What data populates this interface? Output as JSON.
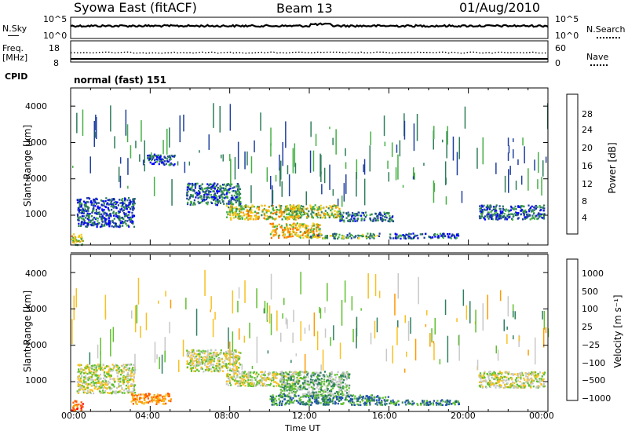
{
  "header": {
    "title": "Syowa East (fitACF)",
    "beam": "Beam 13",
    "date": "01/Aug/2010"
  },
  "status": {
    "nsky_label": "N.Sky",
    "nsky_ticks": [
      "10^5",
      "10^0"
    ],
    "nsearch_label": "N.Search",
    "nsearch_ticks": [
      "10^5",
      "10^0"
    ],
    "freq_label": "Freq.",
    "freq_unit": "[MHz]",
    "freq_ticks": [
      "18",
      "8"
    ],
    "nave_label": "Nave",
    "nave_ticks": [
      "60",
      "0"
    ],
    "cpid_label": "CPID",
    "cpid_value": "normal (fast) 151"
  },
  "chart_data": [
    {
      "type": "heatmap",
      "name": "power",
      "ylabel": "Slant Range [km]",
      "xlabel": "",
      "ylim": [
        180,
        4500
      ],
      "yticks": [
        "1000",
        "2000",
        "3000",
        "4000"
      ],
      "yvalues": [
        1000,
        2000,
        3000,
        4000
      ],
      "colorbar_label": "Power [dB]",
      "colorbar_ticks": [
        "28",
        "24",
        "20",
        "16",
        "12",
        "8",
        "4"
      ],
      "colorbar_colors": [
        "#0000ff",
        "#2040a0",
        "#2e7d5a",
        "#45b045",
        "#f0d020",
        "#f8a000",
        "#ff6a00",
        "#ff2000"
      ],
      "bands": [
        {
          "x": [
            0.3,
            3.2
          ],
          "r": [
            700,
            1500
          ],
          "mean": 6
        },
        {
          "x": [
            3.8,
            5.2
          ],
          "r": [
            2400,
            2700
          ],
          "mean": 6
        },
        {
          "x": [
            5.8,
            8.5
          ],
          "r": [
            1300,
            1900
          ],
          "mean": 8
        },
        {
          "x": [
            7.8,
            11.5
          ],
          "r": [
            900,
            1300
          ],
          "mean": 18
        },
        {
          "x": [
            11.0,
            13.5
          ],
          "r": [
            950,
            1300
          ],
          "mean": 16
        },
        {
          "x": [
            10.0,
            12.5
          ],
          "r": [
            400,
            800
          ],
          "mean": 20
        },
        {
          "x": [
            13.5,
            16.2
          ],
          "r": [
            850,
            1100
          ],
          "mean": 8
        },
        {
          "x": [
            12.0,
            15.5
          ],
          "r": [
            380,
            520
          ],
          "mean": 12
        },
        {
          "x": [
            16.0,
            19.5
          ],
          "r": [
            380,
            520
          ],
          "mean": 6
        },
        {
          "x": [
            20.5,
            23.8
          ],
          "r": [
            900,
            1300
          ],
          "mean": 8
        },
        {
          "x": [
            0.0,
            0.6
          ],
          "r": [
            200,
            500
          ],
          "mean": 18
        }
      ]
    },
    {
      "type": "heatmap",
      "name": "velocity",
      "ylabel": "Slant Range [km]",
      "xlabel": "Time UT",
      "ylim": [
        180,
        4500
      ],
      "yticks": [
        "1000",
        "2000",
        "3000",
        "4000"
      ],
      "yvalues": [
        1000,
        2000,
        3000,
        4000
      ],
      "xticks": [
        "00:00",
        "04:00",
        "08:00",
        "12:00",
        "16:00",
        "20:00",
        "00:00"
      ],
      "xvalues": [
        0,
        4,
        8,
        12,
        16,
        20,
        24
      ],
      "colorbar_label": "Velocity [m s⁻¹]",
      "colorbar_ticks": [
        "1000",
        "500",
        "100",
        "25",
        "−25",
        "−100",
        "−500",
        "−1000"
      ],
      "colorbar_colors": [
        "#ff0000",
        "#ff5a00",
        "#ff9a00",
        "#f8c020",
        "#c8c8c8",
        "#60c030",
        "#2e8060",
        "#2050b0",
        "#0000ff"
      ],
      "bands": [
        {
          "x": [
            0.3,
            3.2
          ],
          "r": [
            700,
            1500
          ],
          "mean": 0
        },
        {
          "x": [
            5.8,
            8.5
          ],
          "r": [
            1300,
            1900
          ],
          "mean": 0
        },
        {
          "x": [
            7.8,
            11.5
          ],
          "r": [
            900,
            1300
          ],
          "mean": 0
        },
        {
          "x": [
            10.5,
            14.0
          ],
          "r": [
            600,
            1300
          ],
          "mean": 1
        },
        {
          "x": [
            10.0,
            16.0
          ],
          "r": [
            380,
            650
          ],
          "mean": 2
        },
        {
          "x": [
            16.0,
            19.5
          ],
          "r": [
            380,
            520
          ],
          "mean": 2
        },
        {
          "x": [
            20.5,
            23.8
          ],
          "r": [
            850,
            1300
          ],
          "mean": 0
        },
        {
          "x": [
            0.0,
            0.6
          ],
          "r": [
            200,
            500
          ],
          "mean": -3
        },
        {
          "x": [
            3.0,
            5.0
          ],
          "r": [
            400,
            700
          ],
          "mean": -2
        }
      ]
    }
  ]
}
